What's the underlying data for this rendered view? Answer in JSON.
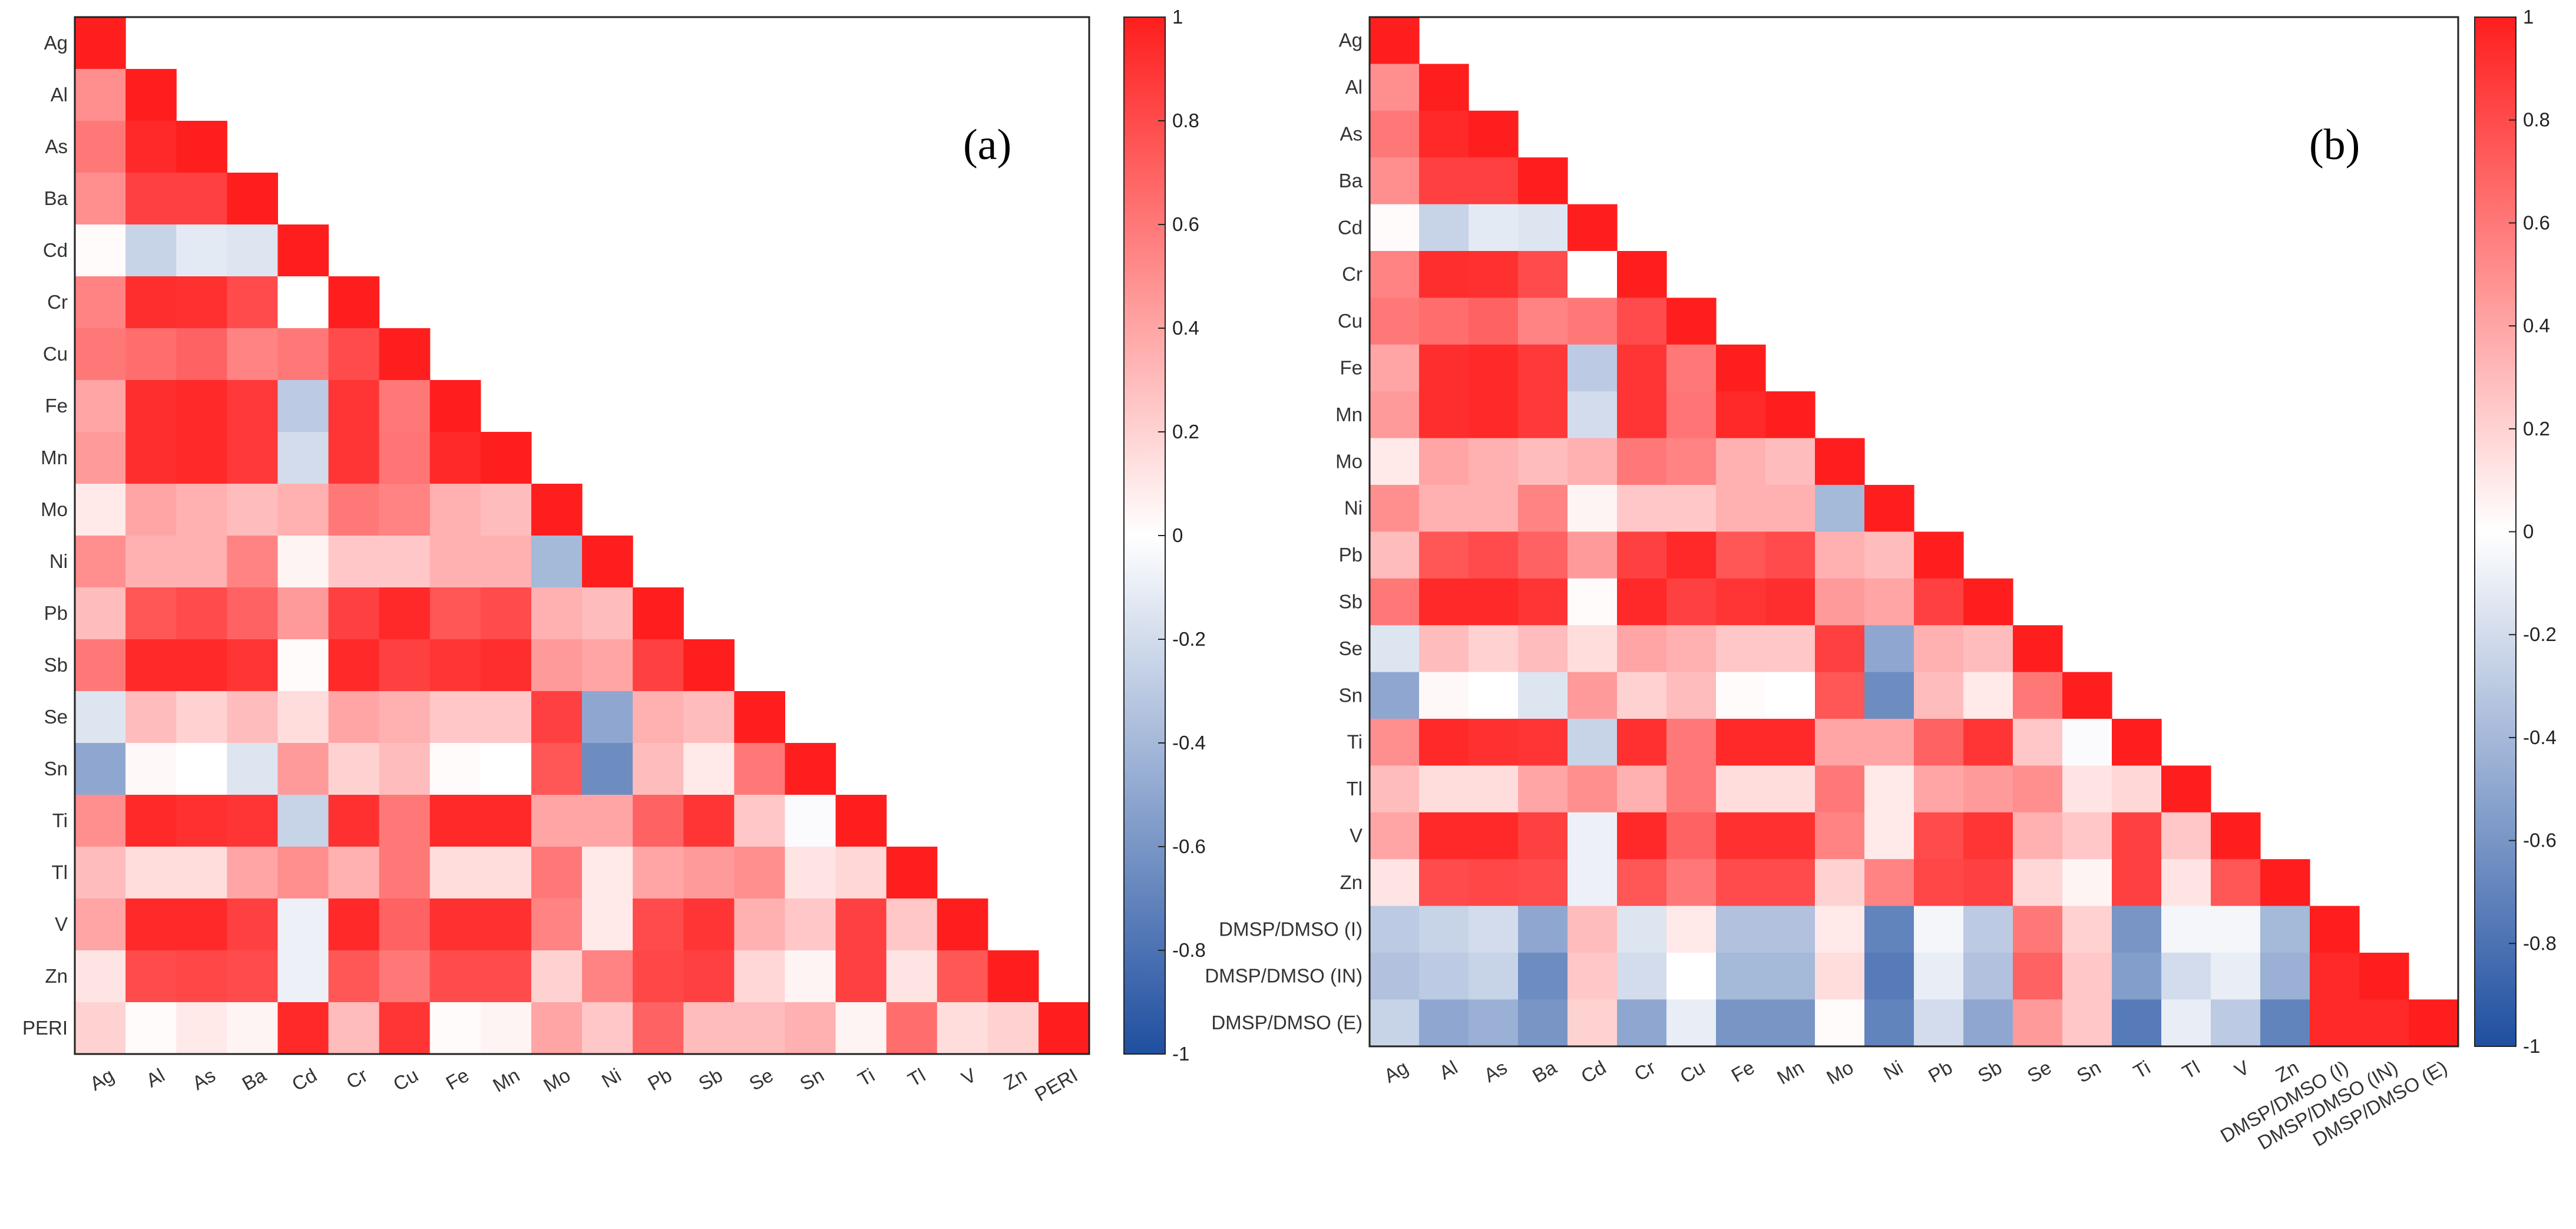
{
  "chart_data": [
    {
      "type": "heatmap",
      "panel_label": "(a)",
      "labels": [
        "Ag",
        "Al",
        "As",
        "Ba",
        "Cd",
        "Cr",
        "Cu",
        "Fe",
        "Mn",
        "Mo",
        "Ni",
        "Pb",
        "Sb",
        "Se",
        "Sn",
        "Ti",
        "Tl",
        "V",
        "Zn",
        "PERI"
      ],
      "lower_triangle_rows": [
        [
          1
        ],
        [
          0.5,
          1
        ],
        [
          0.6,
          0.95,
          1
        ],
        [
          0.5,
          0.85,
          0.85,
          1
        ],
        [
          0.02,
          -0.25,
          -0.12,
          -0.15,
          1
        ],
        [
          0.55,
          0.93,
          0.92,
          0.8,
          0.0,
          1
        ],
        [
          0.6,
          0.65,
          0.7,
          0.55,
          0.6,
          0.8,
          1
        ],
        [
          0.4,
          0.93,
          0.95,
          0.88,
          -0.3,
          0.9,
          0.6,
          1
        ],
        [
          0.45,
          0.93,
          0.95,
          0.88,
          -0.2,
          0.9,
          0.62,
          0.95,
          1
        ],
        [
          0.1,
          0.4,
          0.35,
          0.3,
          0.35,
          0.6,
          0.55,
          0.35,
          0.3,
          1
        ],
        [
          0.5,
          0.35,
          0.35,
          0.55,
          0.05,
          0.25,
          0.25,
          0.35,
          0.35,
          -0.4,
          1
        ],
        [
          0.3,
          0.75,
          0.8,
          0.7,
          0.45,
          0.85,
          0.95,
          0.75,
          0.8,
          0.35,
          0.3,
          1
        ],
        [
          0.6,
          0.95,
          0.95,
          0.9,
          0.02,
          0.95,
          0.85,
          0.9,
          0.93,
          0.45,
          0.4,
          0.85,
          1
        ],
        [
          -0.15,
          0.3,
          0.2,
          0.3,
          0.15,
          0.4,
          0.35,
          0.25,
          0.25,
          0.85,
          -0.5,
          0.35,
          0.3,
          1
        ],
        [
          -0.5,
          0.03,
          0.0,
          -0.15,
          0.45,
          0.2,
          0.3,
          0.02,
          0.0,
          0.75,
          -0.65,
          0.3,
          0.1,
          0.6,
          1
        ],
        [
          0.5,
          0.95,
          0.92,
          0.9,
          -0.25,
          0.92,
          0.6,
          0.95,
          0.95,
          0.4,
          0.4,
          0.7,
          0.9,
          0.25,
          -0.02,
          1
        ],
        [
          0.3,
          0.15,
          0.15,
          0.4,
          0.5,
          0.35,
          0.6,
          0.15,
          0.15,
          0.6,
          0.1,
          0.4,
          0.45,
          0.5,
          0.12,
          0.18,
          1
        ],
        [
          0.4,
          0.95,
          0.95,
          0.85,
          -0.08,
          0.95,
          0.7,
          0.92,
          0.92,
          0.55,
          0.1,
          0.8,
          0.9,
          0.35,
          0.25,
          0.85,
          0.25,
          1
        ],
        [
          0.12,
          0.8,
          0.82,
          0.8,
          -0.08,
          0.75,
          0.6,
          0.8,
          0.8,
          0.2,
          0.55,
          0.82,
          0.85,
          0.18,
          0.05,
          0.85,
          0.12,
          0.75,
          1
        ],
        [
          0.2,
          0.02,
          0.1,
          0.05,
          0.95,
          0.3,
          0.9,
          0.02,
          0.05,
          0.4,
          0.25,
          0.7,
          0.3,
          0.3,
          0.35,
          0.05,
          0.65,
          0.15,
          0.2,
          1
        ]
      ],
      "colorbar": {
        "min": -1,
        "max": 1,
        "ticks": [
          "1",
          "0.8",
          "0.6",
          "0.4",
          "0.2",
          "0",
          "-0.2",
          "-0.4",
          "-0.6",
          "-0.8",
          "-1"
        ]
      },
      "colors": {
        "positive": "#ff1e1e",
        "neutral": "#ffffff",
        "negative": "#1f4fa0"
      }
    },
    {
      "type": "heatmap",
      "panel_label": "(b)",
      "labels": [
        "Ag",
        "Al",
        "As",
        "Ba",
        "Cd",
        "Cr",
        "Cu",
        "Fe",
        "Mn",
        "Mo",
        "Ni",
        "Pb",
        "Sb",
        "Se",
        "Sn",
        "Ti",
        "Tl",
        "V",
        "Zn",
        "DMSP/DMSO (I)",
        "DMSP/DMSO (IN)",
        "DMSP/DMSO (E)"
      ],
      "lower_triangle_rows": [
        [
          1
        ],
        [
          0.5,
          1
        ],
        [
          0.6,
          0.95,
          1
        ],
        [
          0.5,
          0.85,
          0.85,
          1
        ],
        [
          0.02,
          -0.25,
          -0.12,
          -0.15,
          1
        ],
        [
          0.55,
          0.93,
          0.92,
          0.8,
          0.0,
          1
        ],
        [
          0.6,
          0.65,
          0.7,
          0.55,
          0.6,
          0.8,
          1
        ],
        [
          0.4,
          0.93,
          0.95,
          0.88,
          -0.3,
          0.9,
          0.6,
          1
        ],
        [
          0.45,
          0.93,
          0.95,
          0.88,
          -0.2,
          0.9,
          0.62,
          0.95,
          1
        ],
        [
          0.1,
          0.4,
          0.35,
          0.3,
          0.35,
          0.6,
          0.55,
          0.35,
          0.3,
          1
        ],
        [
          0.5,
          0.35,
          0.35,
          0.55,
          0.05,
          0.25,
          0.25,
          0.35,
          0.35,
          -0.4,
          1
        ],
        [
          0.3,
          0.75,
          0.8,
          0.7,
          0.45,
          0.85,
          0.95,
          0.75,
          0.8,
          0.35,
          0.3,
          1
        ],
        [
          0.6,
          0.95,
          0.95,
          0.9,
          0.02,
          0.95,
          0.85,
          0.9,
          0.93,
          0.45,
          0.4,
          0.85,
          1
        ],
        [
          -0.15,
          0.3,
          0.2,
          0.3,
          0.15,
          0.4,
          0.35,
          0.25,
          0.25,
          0.85,
          -0.5,
          0.35,
          0.3,
          1
        ],
        [
          -0.5,
          0.03,
          0.0,
          -0.15,
          0.45,
          0.2,
          0.3,
          0.02,
          0.0,
          0.75,
          -0.65,
          0.3,
          0.1,
          0.6,
          1
        ],
        [
          0.5,
          0.95,
          0.92,
          0.9,
          -0.25,
          0.92,
          0.6,
          0.95,
          0.95,
          0.4,
          0.4,
          0.7,
          0.9,
          0.25,
          -0.02,
          1
        ],
        [
          0.3,
          0.15,
          0.15,
          0.4,
          0.5,
          0.35,
          0.6,
          0.15,
          0.15,
          0.6,
          0.1,
          0.4,
          0.45,
          0.5,
          0.12,
          0.18,
          1
        ],
        [
          0.4,
          0.95,
          0.95,
          0.85,
          -0.08,
          0.95,
          0.7,
          0.92,
          0.92,
          0.55,
          0.1,
          0.8,
          0.9,
          0.35,
          0.25,
          0.85,
          0.25,
          1
        ],
        [
          0.12,
          0.8,
          0.82,
          0.8,
          -0.08,
          0.75,
          0.6,
          0.8,
          0.8,
          0.2,
          0.55,
          0.82,
          0.85,
          0.18,
          0.05,
          0.85,
          0.12,
          0.75,
          1
        ],
        [
          -0.3,
          -0.25,
          -0.2,
          -0.5,
          0.3,
          -0.15,
          0.1,
          -0.35,
          -0.35,
          0.1,
          -0.7,
          -0.05,
          -0.3,
          0.6,
          0.2,
          -0.6,
          -0.05,
          -0.05,
          -0.4,
          1
        ],
        [
          -0.35,
          -0.3,
          -0.25,
          -0.65,
          0.25,
          -0.2,
          0.0,
          -0.4,
          -0.4,
          0.15,
          -0.75,
          -0.1,
          -0.35,
          0.7,
          0.25,
          -0.55,
          -0.2,
          -0.1,
          -0.45,
          0.95,
          1
        ],
        [
          -0.25,
          -0.5,
          -0.45,
          -0.6,
          0.2,
          -0.5,
          -0.1,
          -0.6,
          -0.6,
          0.02,
          -0.7,
          -0.2,
          -0.5,
          0.45,
          0.25,
          -0.75,
          -0.1,
          -0.3,
          -0.7,
          0.95,
          0.95,
          1
        ]
      ],
      "colorbar": {
        "min": -1,
        "max": 1,
        "ticks": [
          "1",
          "0.8",
          "0.6",
          "0.4",
          "0.2",
          "0",
          "-0.2",
          "-0.4",
          "-0.6",
          "-0.8",
          "-1"
        ]
      },
      "colors": {
        "positive": "#ff1e1e",
        "neutral": "#ffffff",
        "negative": "#1f4fa0"
      }
    }
  ]
}
